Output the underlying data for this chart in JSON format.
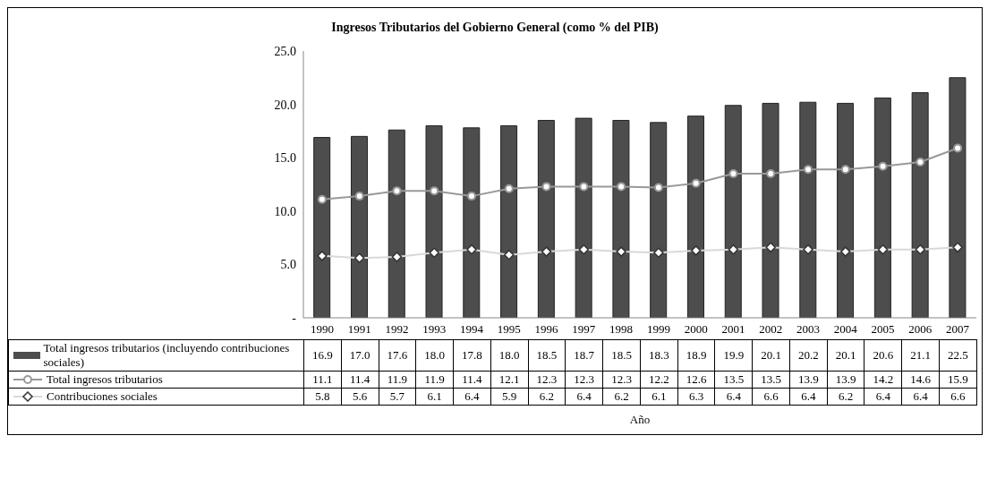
{
  "chart_data": {
    "type": "bar",
    "title": "Ingresos Tributarios del Gobierno General (como % del PIB)",
    "annotations": [
      "Año"
    ],
    "categories": [
      "1990",
      "1991",
      "1992",
      "1993",
      "1994",
      "1995",
      "1996",
      "1997",
      "1998",
      "1999",
      "2000",
      "2001",
      "2002",
      "2003",
      "2004",
      "2005",
      "2006",
      "2007"
    ],
    "series": [
      {
        "name": "Total ingresos tributarios (incluyendo contribuciones sociales)",
        "color": "#4d4d4d",
        "values": [
          16.9,
          17.0,
          17.6,
          18.0,
          17.8,
          18.0,
          18.5,
          18.7,
          18.5,
          18.3,
          18.9,
          19.9,
          20.1,
          20.2,
          20.1,
          20.6,
          21.1,
          22.5
        ],
        "value_labels": [
          "16.9",
          "17.0",
          "17.6",
          "18.0",
          "17.8",
          "18.0",
          "18.5",
          "18.7",
          "18.5",
          "18.3",
          "18.9",
          "19.9",
          "20.1",
          "20.2",
          "20.1",
          "20.6",
          "21.1",
          "22.5"
        ]
      },
      {
        "name": "Total ingresos tributarios",
        "type": "line",
        "color": "#999999",
        "marker": "circle",
        "values": [
          11.1,
          11.4,
          11.9,
          11.9,
          11.4,
          12.1,
          12.3,
          12.3,
          12.3,
          12.2,
          12.6,
          13.5,
          13.5,
          13.9,
          13.9,
          14.2,
          14.6,
          15.9
        ],
        "value_labels": [
          "11.1",
          "11.4",
          "11.9",
          "11.9",
          "11.4",
          "12.1",
          "12.3",
          "12.3",
          "12.3",
          "12.2",
          "12.6",
          "13.5",
          "13.5",
          "13.9",
          "13.9",
          "14.2",
          "14.6",
          "15.9"
        ]
      },
      {
        "name": "Contribuciones sociales",
        "type": "line",
        "color": "#d9d9d9",
        "marker": "diamond",
        "values": [
          5.8,
          5.6,
          5.7,
          6.1,
          6.4,
          5.9,
          6.2,
          6.4,
          6.2,
          6.1,
          6.3,
          6.4,
          6.6,
          6.4,
          6.2,
          6.4,
          6.4,
          6.6
        ],
        "value_labels": [
          "5.8",
          "5.6",
          "5.7",
          "6.1",
          "6.4",
          "5.9",
          "6.2",
          "6.4",
          "6.2",
          "6.1",
          "6.3",
          "6.4",
          "6.6",
          "6.4",
          "6.2",
          "6.4",
          "6.4",
          "6.6"
        ]
      }
    ],
    "ylim": [
      0,
      25
    ],
    "yticks": [
      {
        "value": 0,
        "label": "-"
      },
      {
        "value": 5,
        "label": "5.0"
      },
      {
        "value": 10,
        "label": "10.0"
      },
      {
        "value": 15,
        "label": "15.0"
      },
      {
        "value": 20,
        "label": "20.0"
      },
      {
        "value": 25,
        "label": "25.0"
      }
    ],
    "grid": false,
    "legend": "bottom left"
  }
}
